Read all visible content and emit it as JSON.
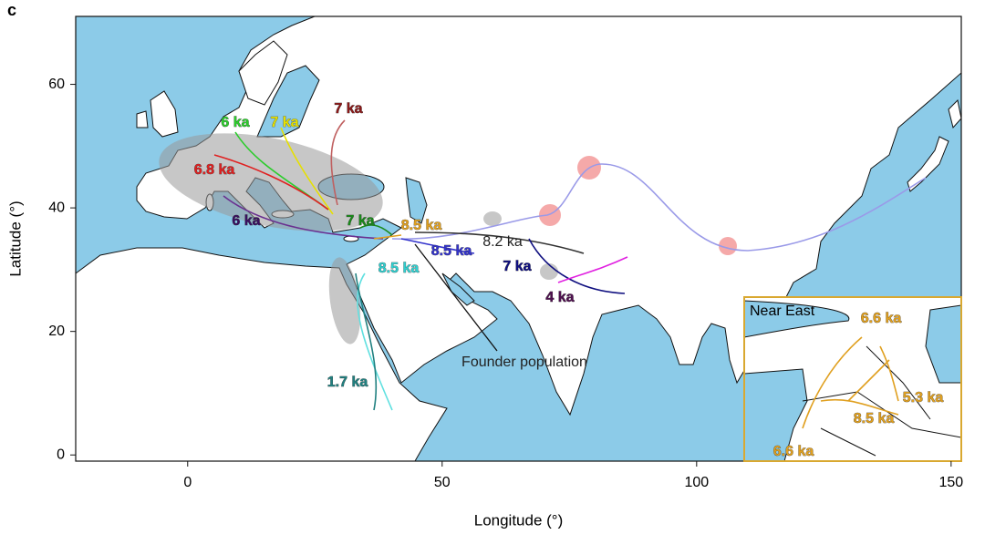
{
  "panel_label": "c",
  "map": {
    "xlabel": "Longitude (°)",
    "ylabel": "Latitude (°)",
    "xlim": [
      -22,
      152
    ],
    "ylim": [
      -1,
      71
    ],
    "xticks": [
      0,
      50,
      100,
      150
    ],
    "yticks": [
      0,
      20,
      40,
      60
    ],
    "labels": [
      {
        "text": "6 ka",
        "color": "#2ccc2c"
      },
      {
        "text": "7 ka",
        "color": "#e6e000"
      },
      {
        "text": "7 ka",
        "color": "#8b1a1a"
      },
      {
        "text": "6.8 ka",
        "color": "#e02020"
      },
      {
        "text": "6 ka",
        "color": "#3a1060"
      },
      {
        "text": "7 ka",
        "color": "#1a8a1a"
      },
      {
        "text": "8.5 ka",
        "color": "#e0a020"
      },
      {
        "text": "8.5 ka",
        "color": "#3333cc"
      },
      {
        "text": "8.2 ka",
        "color": "#222222"
      },
      {
        "text": "7 ka",
        "color": "#101080"
      },
      {
        "text": "8.5 ka",
        "color": "#30d0d0"
      },
      {
        "text": "4 ka",
        "color": "#501050"
      },
      {
        "text": "1.7 ka",
        "color": "#208080"
      },
      {
        "text": "Founder population",
        "color": "#222222"
      }
    ],
    "inset": {
      "title": "Near East",
      "labels": [
        {
          "text": "6.6 ka",
          "color": "#e0a020"
        },
        {
          "text": "5.3 ka",
          "color": "#e0a020"
        },
        {
          "text": "8.5 ka",
          "color": "#e0a020"
        },
        {
          "text": "6.6 ka",
          "color": "#e0a020"
        }
      ]
    }
  }
}
